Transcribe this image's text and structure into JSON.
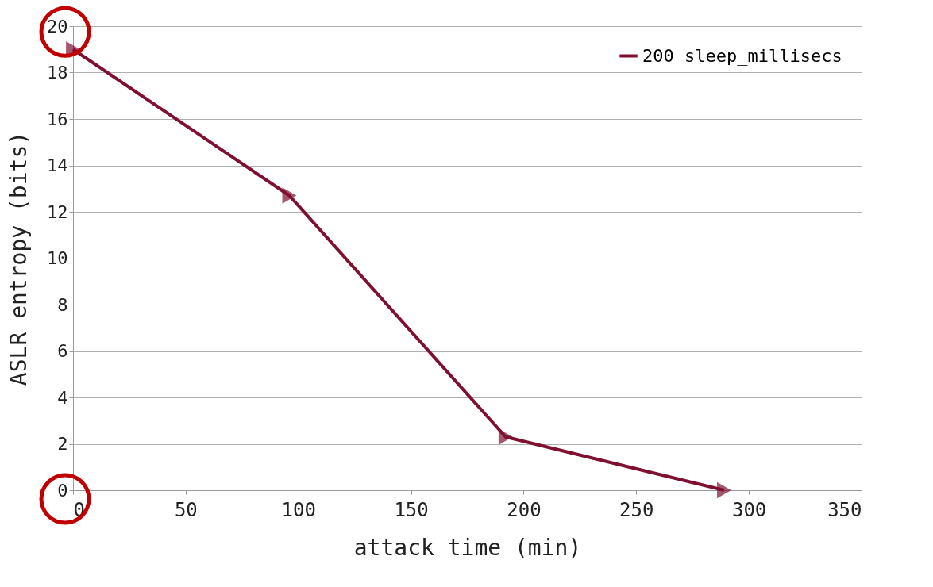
{
  "chart_data": {
    "type": "line",
    "xlabel": "attack time (min)",
    "ylabel": "ASLR entropy  (bits)",
    "xlim": [
      0,
      350
    ],
    "xticks": [
      0,
      50,
      100,
      150,
      200,
      250,
      300,
      350
    ],
    "ylim": [
      0,
      20
    ],
    "yticks": [
      0,
      2,
      4,
      6,
      8,
      10,
      12,
      14,
      16,
      18,
      20
    ],
    "grid": "y",
    "legend": "top right",
    "marker": "triangle",
    "series": [
      {
        "name": "200 sleep_millisecs",
        "color": "#7f1030",
        "x": [
          0,
          96,
          192,
          289
        ],
        "values": [
          19,
          12.7,
          2.3,
          0
        ]
      }
    ]
  }
}
